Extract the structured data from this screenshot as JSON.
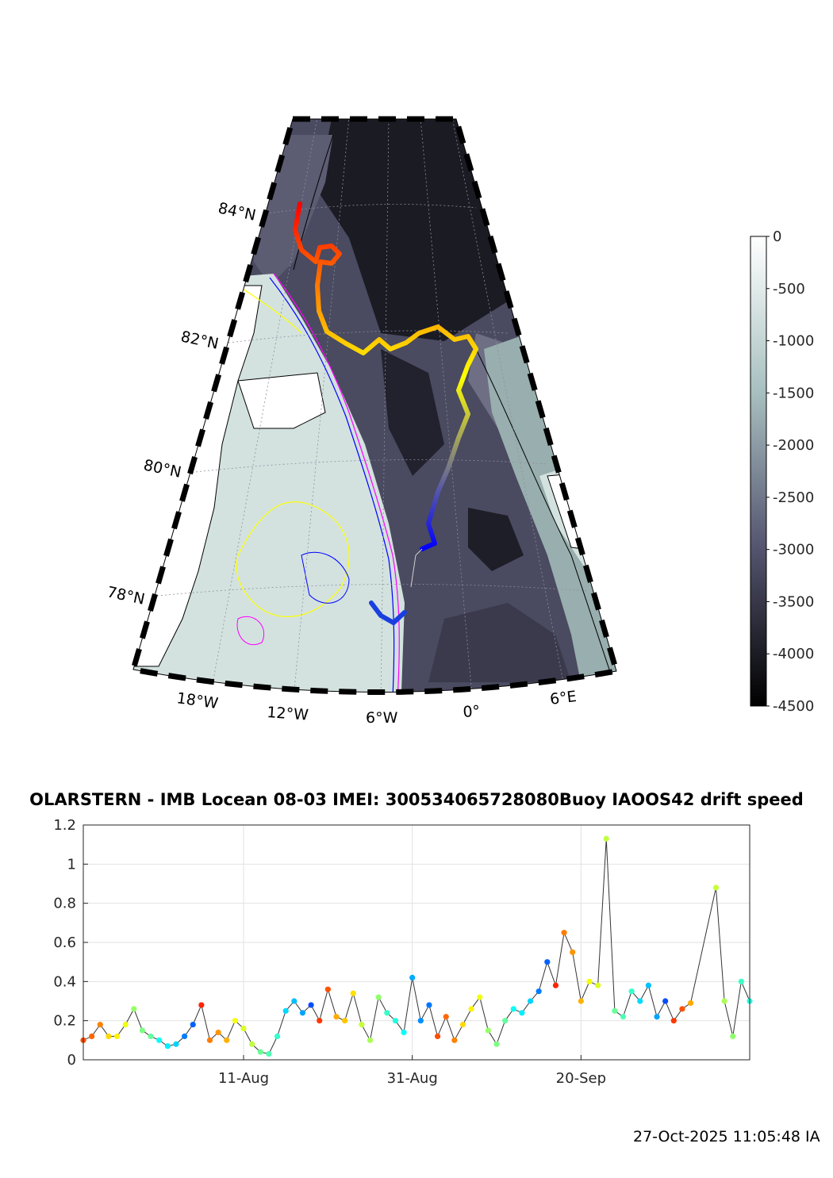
{
  "map": {
    "lat_labels": [
      "84°N",
      "82°N",
      "80°N",
      "78°N"
    ],
    "lon_labels": [
      "18°W",
      "12°W",
      "6°W",
      "0°",
      "6°E"
    ],
    "colorbar": {
      "ticks": [
        "0",
        "-500",
        "-1000",
        "-1500",
        "-2000",
        "-2500",
        "-3000",
        "-3500",
        "-4000",
        "-4500"
      ],
      "range": [
        -4500,
        0
      ],
      "colormap": "bone"
    }
  },
  "speed_panel": {
    "title": "OLARSTERN - IMB Locean 08-03 IMEI: 300534065728080Buoy IAOOS42 drift speed"
  },
  "footer": {
    "timestamp": "27-Oct-2025 11:05:48 IA"
  },
  "chart_data": {
    "type": "line",
    "title": "OLARSTERN - IMB Locean 08-03 IMEI: 300534065728080Buoy IAOOS42 drift speed",
    "xlabel": "",
    "ylabel": "",
    "x_tick_labels": [
      "11-Aug",
      "31-Aug",
      "20-Sep"
    ],
    "y_tick_labels": [
      "0",
      "0.2",
      "0.4",
      "0.6",
      "0.8",
      "1",
      "1.2"
    ],
    "xlim": [
      "2025-07-23",
      "2025-10-10"
    ],
    "ylim": [
      0,
      1.2
    ],
    "grid": true,
    "marker": "filled-circle",
    "line_color": "#333333",
    "colormap": "jet (color cycles with time along the drift)",
    "series": [
      {
        "x": [
          "2025-07-23",
          "2025-07-24",
          "2025-07-25",
          "2025-07-26",
          "2025-07-27",
          "2025-07-28",
          "2025-07-29",
          "2025-07-30",
          "2025-07-31",
          "2025-08-01",
          "2025-08-02",
          "2025-08-03",
          "2025-08-04",
          "2025-08-05",
          "2025-08-06",
          "2025-08-07",
          "2025-08-08",
          "2025-08-09",
          "2025-08-10",
          "2025-08-11",
          "2025-08-12",
          "2025-08-13",
          "2025-08-14",
          "2025-08-15",
          "2025-08-16",
          "2025-08-17",
          "2025-08-18",
          "2025-08-19",
          "2025-08-20",
          "2025-08-21",
          "2025-08-22",
          "2025-08-23",
          "2025-08-24",
          "2025-08-25",
          "2025-08-26",
          "2025-08-27",
          "2025-08-28",
          "2025-08-29",
          "2025-08-30",
          "2025-08-31",
          "2025-09-01",
          "2025-09-02",
          "2025-09-03",
          "2025-09-04",
          "2025-09-05",
          "2025-09-06",
          "2025-09-07",
          "2025-09-08",
          "2025-09-09",
          "2025-09-10",
          "2025-09-11",
          "2025-09-12",
          "2025-09-13",
          "2025-09-14",
          "2025-09-15",
          "2025-09-16",
          "2025-09-17",
          "2025-09-18",
          "2025-09-19",
          "2025-09-20",
          "2025-09-21",
          "2025-09-22",
          "2025-09-23",
          "2025-09-24",
          "2025-09-25",
          "2025-09-26",
          "2025-09-27",
          "2025-09-28",
          "2025-09-29",
          "2025-09-30",
          "2025-10-01",
          "2025-10-02",
          "2025-10-03",
          "2025-10-04",
          "2025-10-05",
          "2025-10-06",
          "2025-10-07",
          "2025-10-08",
          "2025-10-09",
          "2025-10-10"
        ],
        "y": [
          0.1,
          0.12,
          0.18,
          0.12,
          0.12,
          0.18,
          0.26,
          0.15,
          0.12,
          0.1,
          0.07,
          0.08,
          0.12,
          0.18,
          0.28,
          0.1,
          0.14,
          0.1,
          0.2,
          0.16,
          0.08,
          0.04,
          0.03,
          0.12,
          0.25,
          0.3,
          0.24,
          0.28,
          0.2,
          0.36,
          0.22,
          0.2,
          0.34,
          0.18,
          0.1,
          0.32,
          0.24,
          0.2,
          0.14,
          0.42,
          0.2,
          0.28,
          0.12,
          0.22,
          0.1,
          0.18,
          0.26,
          0.32,
          0.15,
          0.08,
          0.2,
          0.26,
          0.24,
          0.3,
          0.35,
          0.5,
          0.38,
          0.65,
          0.55,
          0.3,
          0.4,
          0.38,
          1.13,
          0.25,
          0.22,
          0.35,
          0.3,
          0.38,
          0.22,
          0.3,
          0.2,
          0.26,
          0.29,
          null,
          null,
          0.88,
          0.3,
          0.12,
          0.4,
          0.3
        ]
      }
    ]
  }
}
